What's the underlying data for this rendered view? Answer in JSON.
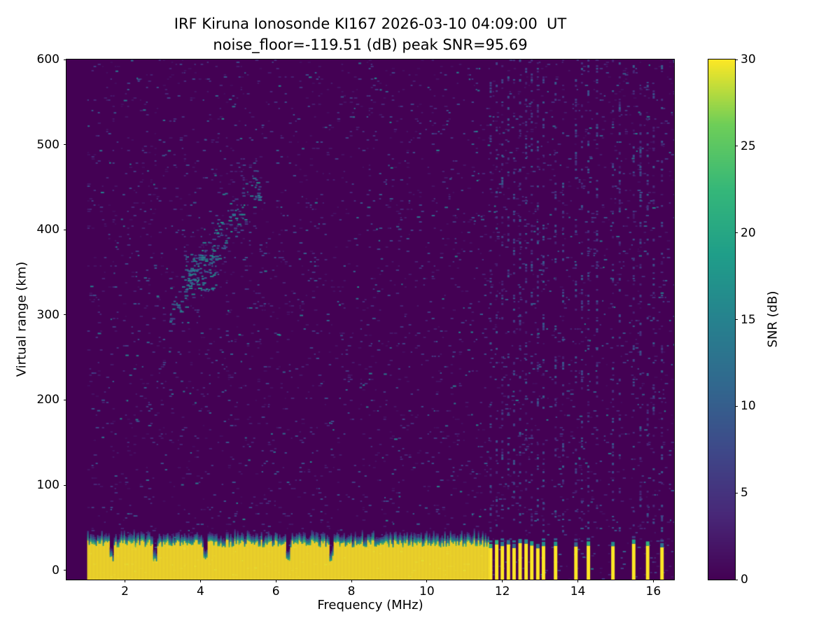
{
  "chart_data": {
    "type": "heatmap",
    "title": "IRF Kiruna Ionosonde KI167 2026-03-10 04:09:00  UT",
    "subtitle": "noise_floor=-119.51 (dB) peak SNR=95.69",
    "station": "KI167",
    "timestamp_ut": "2026-03-10 04:09:00",
    "noise_floor_db": -119.51,
    "peak_snr_db": 95.69,
    "xlabel": "Frequency (MHz)",
    "ylabel": "Virtual range (km)",
    "xlim": [
      0.45,
      16.55
    ],
    "ylim": [
      -11,
      600
    ],
    "xticks": [
      2,
      4,
      6,
      8,
      10,
      12,
      14,
      16
    ],
    "yticks": [
      0,
      100,
      200,
      300,
      400,
      500,
      600
    ],
    "colorbar": {
      "label": "SNR (dB)",
      "min": 0,
      "max": 30,
      "ticks": [
        0,
        5,
        10,
        15,
        20,
        25,
        30
      ],
      "colormap": "viridis"
    },
    "features": {
      "background_snr_db": 0,
      "noise": {
        "speckle_probability": 0.05,
        "snr_min_db": 1,
        "snr_max_db": 12,
        "bright_speckles": 260
      },
      "ground_clutter": {
        "freq_start_mhz": 1.0,
        "freq_end_mhz": 11.62,
        "top_km_min": 27,
        "top_km_max": 36,
        "snr_db": 30
      },
      "notch_freqs_mhz": [
        1.62,
        2.78,
        4.12,
        6.3,
        7.45
      ],
      "clutter_bar_freqs_mhz": [
        11.68,
        11.84,
        11.99,
        12.15,
        12.3,
        12.46,
        12.62,
        12.77,
        12.93,
        13.08,
        13.4,
        13.94,
        14.27,
        14.92,
        15.47,
        15.84,
        16.22
      ],
      "stripe_freqs_mhz": [
        11.68,
        11.84,
        11.99,
        12.15,
        12.3,
        12.46,
        12.62,
        12.77,
        12.93,
        13.08,
        13.4,
        13.6,
        13.94,
        14.1,
        14.27,
        14.5,
        14.92,
        15.1,
        15.47,
        15.65,
        15.84,
        16.0,
        16.22
      ],
      "echo_trace": {
        "freq_start_mhz": 3.15,
        "freq_end_mhz": 5.55,
        "range_start_km": 305,
        "range_end_km": 455,
        "snr_db_min": 6,
        "snr_db_max": 18
      },
      "echo_cluster": {
        "freq_start_mhz": 3.55,
        "freq_end_mhz": 4.4,
        "range_start_km": 328,
        "range_end_km": 373
      }
    }
  }
}
